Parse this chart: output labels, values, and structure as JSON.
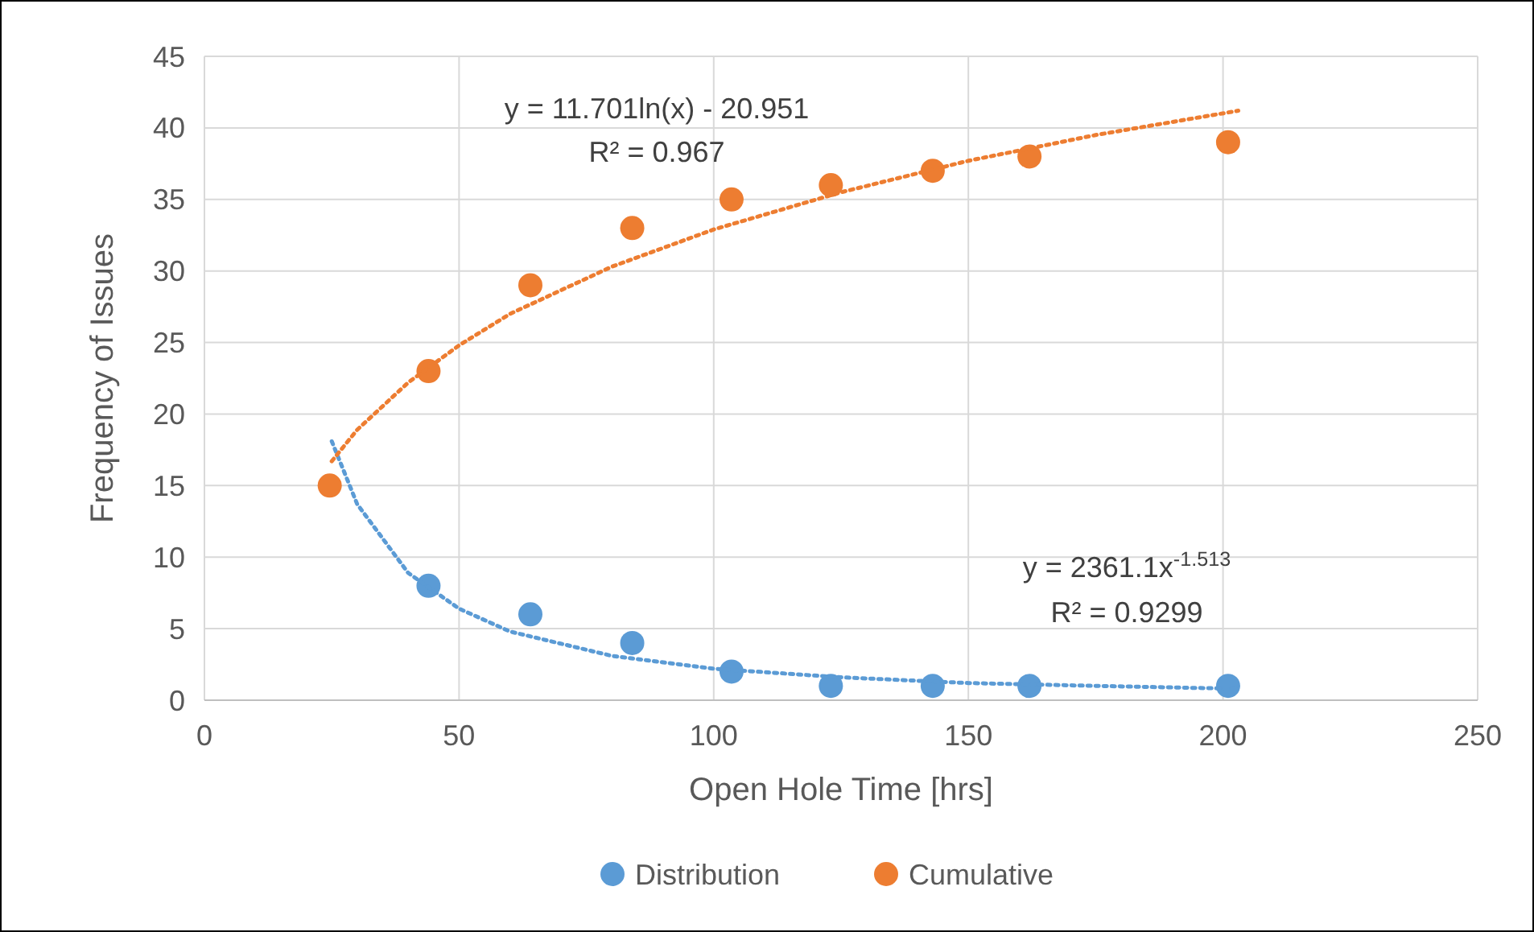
{
  "chart_data": {
    "type": "scatter",
    "xlabel": "Open Hole Time [hrs]",
    "ylabel": "Frequency of Issues",
    "xlim": [
      0,
      250
    ],
    "xticks": [
      0,
      50,
      100,
      150,
      200,
      250
    ],
    "ylim": [
      0,
      45
    ],
    "yticks": [
      0,
      5,
      10,
      15,
      20,
      25,
      30,
      35,
      40,
      45
    ],
    "grid": true,
    "legend": "bottom",
    "marker": "circle",
    "series": [
      {
        "name": "Distribution",
        "color": "#5b9bd5",
        "x": [
          44,
          64,
          84,
          103.5,
          123,
          143,
          162,
          201
        ],
        "values": [
          8,
          6,
          4,
          2,
          1,
          1,
          1,
          1
        ]
      },
      {
        "name": "Cumulative",
        "color": "#ed7d31",
        "x": [
          24.6,
          44,
          64,
          84,
          103.5,
          123,
          143,
          162,
          201
        ],
        "values": [
          15,
          23,
          29,
          33,
          35,
          36,
          37,
          38,
          39
        ]
      },
      {
        "type": "line",
        "color": "#5b9bd5",
        "line_style": "dotted",
        "marker": "none",
        "x": [
          25,
          30,
          40,
          50,
          60,
          80,
          100,
          125,
          150,
          175,
          203
        ],
        "values": [
          18.1,
          13.7,
          8.9,
          6.4,
          4.8,
          3.1,
          2.2,
          1.6,
          1.2,
          1,
          0.8
        ]
      },
      {
        "type": "line",
        "color": "#ed7d31",
        "line_style": "dotted",
        "marker": "none",
        "x": [
          25,
          30,
          40,
          50,
          60,
          80,
          100,
          125,
          150,
          175,
          203
        ],
        "values": [
          16.7,
          18.9,
          22.2,
          24.8,
          27,
          30.3,
          32.9,
          35.5,
          37.7,
          39.5,
          41.2
        ]
      }
    ],
    "annotations": [
      "y = 11.701ln(x) - 20.951",
      "R² = 0.967",
      "y = 2361.1x$^{-1.513}$",
      "R² = 0.9299"
    ]
  }
}
